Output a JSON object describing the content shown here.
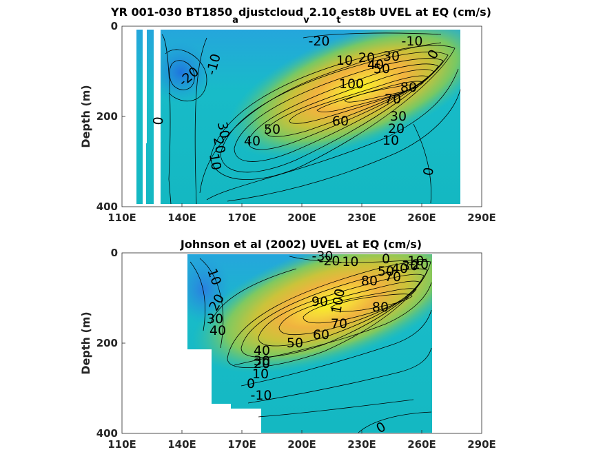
{
  "chart_data": [
    {
      "type": "contour",
      "title_parts": [
        "YR 001-030 BT1850",
        "a",
        "djustcloud",
        "v",
        "2.10",
        "t",
        "est8b UVEL at EQ (cm/s)"
      ],
      "ylabel": "Depth (m)",
      "x_ticks": [
        "110E",
        "140E",
        "170E",
        "200E",
        "230E",
        "260E",
        "290E"
      ],
      "y_ticks": [
        "0",
        "200",
        "400"
      ],
      "xlim": [
        110,
        290
      ],
      "ylim": [
        0,
        400
      ],
      "colormap": "parula",
      "contour_labels": [
        "-20",
        "-10",
        "10",
        "20",
        "30",
        "40",
        "50",
        "100",
        "80",
        "70",
        "60",
        "50",
        "40",
        "30",
        "20",
        "10",
        "0",
        "-20",
        "-10",
        "0",
        "30",
        "20",
        "10",
        "0"
      ]
    },
    {
      "type": "contour",
      "title": "Johnson et al (2002) UVEL at EQ (cm/s)",
      "ylabel": "Depth (m)",
      "x_ticks": [
        "110E",
        "140E",
        "170E",
        "200E",
        "230E",
        "260E",
        "290E"
      ],
      "y_ticks": [
        "0",
        "200",
        "400"
      ],
      "xlim": [
        110,
        290
      ],
      "ylim": [
        0,
        400
      ],
      "colormap": "parula",
      "contour_labels": [
        "-30",
        "-20",
        "-10",
        "0",
        "-10",
        "50",
        "40",
        "30",
        "20",
        "80",
        "70",
        "90",
        "100",
        "80",
        "70",
        "60",
        "50",
        "40",
        "30",
        "20",
        "10",
        "0",
        "-10",
        "10",
        "20",
        "30",
        "40",
        "0"
      ]
    }
  ]
}
